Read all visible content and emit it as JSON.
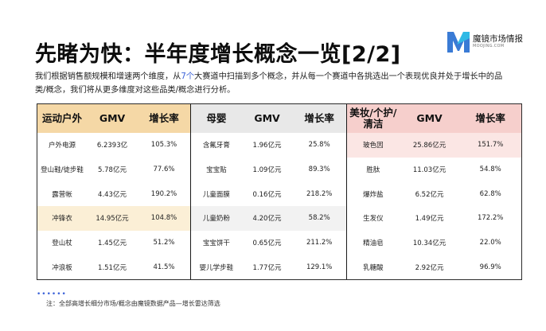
{
  "header": {
    "title": "先睹为快：半年度增长概念一览[2/2]",
    "description_pre": "我们根据销售额规模和增速两个维度，从",
    "description_highlight": "7个",
    "description_post": "大赛道中扫描到多个概念，并从每一个赛道中各挑选出一个表现优良并处于增长中的品类/概念，我们将从更多维度对这些品类/概念进行分析。"
  },
  "logo": {
    "name": "魔镜市场情报",
    "sub": "MOOJING.COM",
    "colors": {
      "blue": "#3a7bd5",
      "cyan": "#2ec4e8"
    }
  },
  "panels": [
    {
      "category": "运动户外",
      "gmv_header": "GMV",
      "growth_header": "增长率",
      "rows": [
        {
          "name": "户外电源",
          "gmv": "6.2393亿",
          "growth": "105.3%",
          "highlight": false
        },
        {
          "name": "登山鞋/徒步鞋",
          "gmv": "5.78亿元",
          "growth": "77.6%",
          "highlight": false
        },
        {
          "name": "露营帐",
          "gmv": "4.43亿元",
          "growth": "190.2%",
          "highlight": false
        },
        {
          "name": "冲锋衣",
          "gmv": "14.95亿元",
          "growth": "104.8%",
          "highlight": true
        },
        {
          "name": "登山杖",
          "gmv": "1.45亿元",
          "growth": "51.2%",
          "highlight": false
        },
        {
          "name": "冲浪板",
          "gmv": "1.51亿元",
          "growth": "41.5%",
          "highlight": false
        }
      ]
    },
    {
      "category": "母婴",
      "gmv_header": "GMV",
      "growth_header": "增长率",
      "rows": [
        {
          "name": "含氟牙膏",
          "gmv": "1.96亿元",
          "growth": "25.8%",
          "highlight": false
        },
        {
          "name": "宝宝贴",
          "gmv": "1.09亿元",
          "growth": "89.3%",
          "highlight": false
        },
        {
          "name": "儿童面膜",
          "gmv": "0.16亿元",
          "growth": "218.2%",
          "highlight": false
        },
        {
          "name": "儿童奶粉",
          "gmv": "4.20亿元",
          "growth": "58.2%",
          "highlight": true
        },
        {
          "name": "宝宝饼干",
          "gmv": "0.65亿元",
          "growth": "211.2%",
          "highlight": false
        },
        {
          "name": "婴儿学步鞋",
          "gmv": "1.77亿元",
          "growth": "129.1%",
          "highlight": false
        }
      ]
    },
    {
      "category": "美妆/个护/清洁",
      "gmv_header": "GMV",
      "growth_header": "增长率",
      "rows": [
        {
          "name": "玻色因",
          "gmv": "25.86亿元",
          "growth": "151.7%",
          "highlight": true
        },
        {
          "name": "胜肽",
          "gmv": "11.03亿元",
          "growth": "54.8%",
          "highlight": false
        },
        {
          "name": "爆炸盐",
          "gmv": "6.52亿元",
          "growth": "62.8%",
          "highlight": false
        },
        {
          "name": "生发仪",
          "gmv": "1.49亿元",
          "growth": "172.2%",
          "highlight": false
        },
        {
          "name": "精油皂",
          "gmv": "10.34亿元",
          "growth": "22.0%",
          "highlight": false
        },
        {
          "name": "乳糖酸",
          "gmv": "2.92亿元",
          "growth": "96.9%",
          "highlight": false
        }
      ]
    }
  ],
  "footer": {
    "dots": "••••••",
    "note": "注：全部高增长细分市场/概念由魔镜数据产品—增长雷达筛选"
  }
}
